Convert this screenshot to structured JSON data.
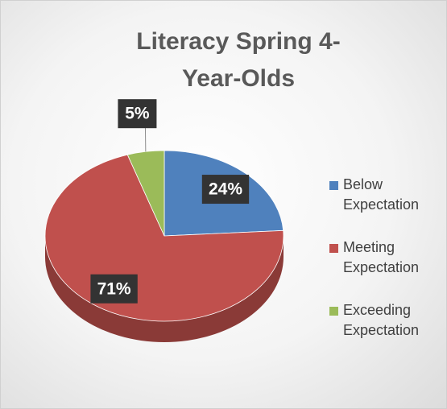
{
  "chart_data": {
    "type": "pie",
    "title": "Literacy Spring 4-Year-Olds",
    "categories": [
      "Below Expectation",
      "Meeting Expectation",
      "Exceeding Expectation"
    ],
    "values": [
      24,
      71,
      5
    ],
    "value_labels": [
      "24%",
      "71%",
      "5%"
    ],
    "colors": [
      "#4f81bd",
      "#c0504d",
      "#9bbb59"
    ]
  }
}
